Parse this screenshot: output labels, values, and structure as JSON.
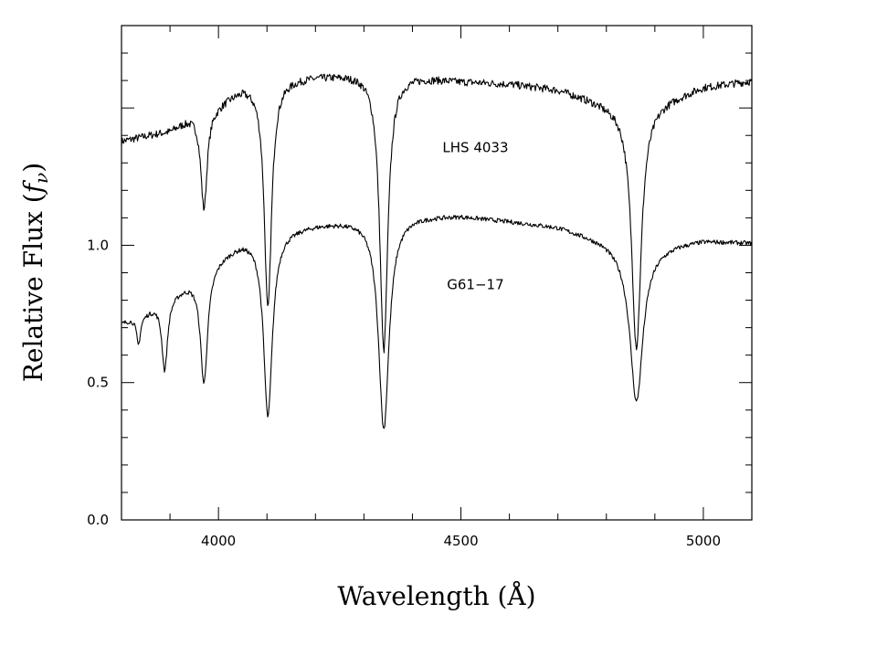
{
  "chart_data": {
    "type": "line",
    "xlabel": "Wavelength (Å)",
    "ylabel_main": "Relative Flux (",
    "ylabel_italic": "f",
    "ylabel_sub": "ν",
    "ylabel_close": ")",
    "xlim": [
      3800,
      5100
    ],
    "ylim": [
      0.0,
      1.8
    ],
    "x_ticks": [
      4000,
      4500,
      5000
    ],
    "y_ticks": [
      0.0,
      0.5,
      1.0
    ],
    "x_tick_labels": [
      "4000",
      "4500",
      "5000"
    ],
    "y_tick_labels": [
      "0.0",
      "0.5",
      "1.0"
    ],
    "series": [
      {
        "name": "LHS 4033",
        "label_x": 4530,
        "label_y": 1.34,
        "continuum": [
          [
            3800,
            1.38
          ],
          [
            3900,
            1.42
          ],
          [
            3950,
            1.48
          ],
          [
            4000,
            1.52
          ],
          [
            4050,
            1.58
          ],
          [
            4100,
            1.6
          ],
          [
            4200,
            1.62
          ],
          [
            4300,
            1.63
          ],
          [
            4400,
            1.62
          ],
          [
            4500,
            1.6
          ],
          [
            4600,
            1.59
          ],
          [
            4700,
            1.57
          ],
          [
            4800,
            1.52
          ],
          [
            4860,
            1.5
          ],
          [
            4950,
            1.55
          ],
          [
            5000,
            1.58
          ],
          [
            5100,
            1.6
          ]
        ],
        "lines": [
          {
            "center": 3970,
            "depth": 0.24,
            "width": 8
          },
          {
            "center": 4102,
            "depth": 0.52,
            "width": 9
          },
          {
            "center": 4341,
            "depth": 0.62,
            "width": 10
          },
          {
            "center": 4862,
            "depth": 0.58,
            "width": 12
          }
        ]
      },
      {
        "name": "G61−17",
        "label_x": 4530,
        "label_y": 0.84,
        "continuum": [
          [
            3800,
            0.72
          ],
          [
            3850,
            0.76
          ],
          [
            3900,
            0.82
          ],
          [
            3950,
            0.88
          ],
          [
            4000,
            0.96
          ],
          [
            4050,
            1.02
          ],
          [
            4100,
            1.05
          ],
          [
            4200,
            1.08
          ],
          [
            4300,
            1.1
          ],
          [
            4400,
            1.11
          ],
          [
            4500,
            1.11
          ],
          [
            4600,
            1.09
          ],
          [
            4700,
            1.07
          ],
          [
            4800,
            1.02
          ],
          [
            4860,
            0.98
          ],
          [
            4950,
            1.01
          ],
          [
            5000,
            1.02
          ],
          [
            5100,
            1.01
          ]
        ],
        "lines": [
          {
            "center": 3835,
            "depth": 0.14,
            "width": 5
          },
          {
            "center": 3889,
            "depth": 0.32,
            "width": 7
          },
          {
            "center": 3970,
            "depth": 0.45,
            "width": 9
          },
          {
            "center": 4102,
            "depth": 0.64,
            "width": 11
          },
          {
            "center": 4341,
            "depth": 0.7,
            "width": 13
          },
          {
            "center": 4862,
            "depth": 0.56,
            "width": 16
          }
        ]
      }
    ],
    "grid": false
  }
}
